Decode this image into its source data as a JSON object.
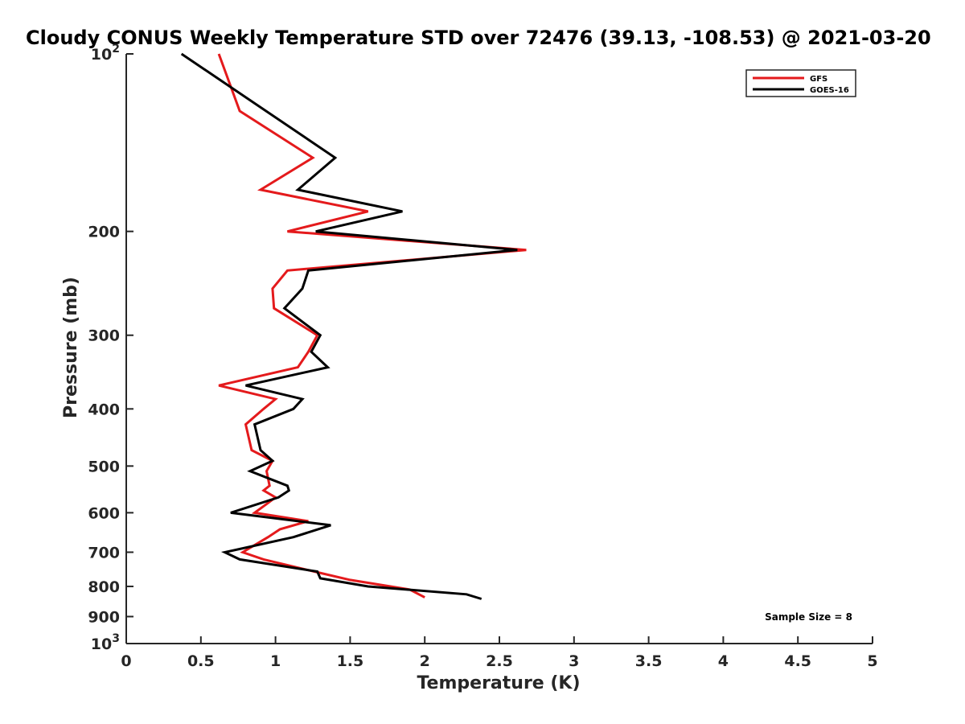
{
  "chart_data": {
    "type": "line",
    "title": "Cloudy CONUS Weekly Temperature STD over 72476 (39.13, -108.53) @ 2021-03-20",
    "xlabel": "Temperature (K)",
    "ylabel": "Pressure (mb)",
    "xlim": [
      0,
      5
    ],
    "ylim": [
      100,
      1000
    ],
    "y_scale": "log",
    "y_reversed": true,
    "x_ticks": [
      0,
      0.5,
      1,
      1.5,
      2,
      2.5,
      3,
      3.5,
      4,
      4.5,
      5
    ],
    "x_tick_labels": [
      "0",
      "0.5",
      "1",
      "1.5",
      "2",
      "2.5",
      "3",
      "3.5",
      "4",
      "4.5",
      "5"
    ],
    "y_ticks": [
      100,
      200,
      300,
      400,
      500,
      600,
      700,
      800,
      900,
      1000
    ],
    "y_tick_labels": [
      "10^2",
      "200",
      "300",
      "400",
      "500",
      "600",
      "700",
      "800",
      "900",
      "10^3"
    ],
    "grid": false,
    "legend_position": "top-right",
    "annotation": "Sample Size = 8",
    "series": [
      {
        "name": "GFS",
        "color": "#e41a1c",
        "points": [
          [
            0.62,
            100
          ],
          [
            0.76,
            125
          ],
          [
            1.25,
            150
          ],
          [
            0.9,
            170
          ],
          [
            1.62,
            185
          ],
          [
            1.08,
            200
          ],
          [
            2.68,
            215
          ],
          [
            1.08,
            233
          ],
          [
            0.98,
            250
          ],
          [
            0.99,
            270
          ],
          [
            1.28,
            300
          ],
          [
            1.22,
            320
          ],
          [
            1.15,
            340
          ],
          [
            0.62,
            365
          ],
          [
            1.0,
            385
          ],
          [
            0.92,
            400
          ],
          [
            0.8,
            425
          ],
          [
            0.84,
            470
          ],
          [
            0.98,
            490
          ],
          [
            0.94,
            510
          ],
          [
            0.96,
            540
          ],
          [
            0.92,
            550
          ],
          [
            1.0,
            565
          ],
          [
            0.94,
            580
          ],
          [
            0.86,
            600
          ],
          [
            1.22,
            620
          ],
          [
            1.03,
            640
          ],
          [
            0.95,
            660
          ],
          [
            0.78,
            700
          ],
          [
            0.92,
            720
          ],
          [
            1.26,
            755
          ],
          [
            1.5,
            780
          ],
          [
            1.9,
            810
          ],
          [
            2.0,
            835
          ]
        ]
      },
      {
        "name": "GOES-16",
        "color": "#000000",
        "points": [
          [
            0.37,
            100
          ],
          [
            1.4,
            150
          ],
          [
            1.15,
            170
          ],
          [
            1.85,
            185
          ],
          [
            1.27,
            200
          ],
          [
            2.62,
            215
          ],
          [
            1.22,
            233
          ],
          [
            1.18,
            250
          ],
          [
            1.06,
            270
          ],
          [
            1.3,
            300
          ],
          [
            1.24,
            320
          ],
          [
            1.35,
            340
          ],
          [
            0.8,
            365
          ],
          [
            1.18,
            385
          ],
          [
            1.12,
            400
          ],
          [
            0.86,
            425
          ],
          [
            0.9,
            470
          ],
          [
            0.98,
            490
          ],
          [
            0.83,
            510
          ],
          [
            1.08,
            540
          ],
          [
            1.09,
            550
          ],
          [
            1.02,
            565
          ],
          [
            0.7,
            600
          ],
          [
            1.37,
            630
          ],
          [
            1.12,
            660
          ],
          [
            0.66,
            700
          ],
          [
            0.76,
            720
          ],
          [
            1.28,
            755
          ],
          [
            1.3,
            775
          ],
          [
            1.62,
            800
          ],
          [
            2.28,
            825
          ],
          [
            2.38,
            840
          ]
        ]
      }
    ]
  }
}
